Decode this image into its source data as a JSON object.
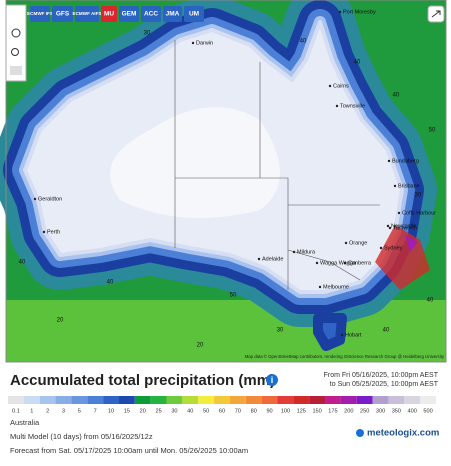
{
  "models": [
    "ECMWF IFS",
    "GFS",
    "ECMWF AIFS",
    "MU",
    "GEM",
    "ACC",
    "JMA",
    "UM"
  ],
  "cities": [
    "Port Moresby",
    "Darwin",
    "Cairns",
    "Townsville",
    "Geraldton",
    "Perth",
    "Adelaide",
    "Mildura",
    "Wagga Wagga",
    "Canberra",
    "Sydney",
    "Newcastle",
    "Tamworth",
    "Coffs Harbour",
    "Brisbane",
    "Bundaberg",
    "Orange",
    "Melbourne",
    "Hobart"
  ],
  "contours": [
    40,
    40,
    40,
    30,
    50,
    40,
    40,
    30,
    40,
    50,
    40,
    30,
    20,
    20
  ],
  "attribution": "Map data © OpenStreetMap contributors, rendering GIScience Research Group @ Heidelberg University",
  "title": "Accumulated total precipitation (mm)",
  "period_from": "From Fri 05/16/2025, 10:00pm AEST",
  "period_to": "to Sun 05/25/2025, 10:00pm AEST",
  "legend": [
    {
      "value": 0.1,
      "color": "#e4e4e4"
    },
    {
      "value": 1,
      "color": "#c9dbf5"
    },
    {
      "value": 2,
      "color": "#a8c4ee"
    },
    {
      "value": 3,
      "color": "#88aee8"
    },
    {
      "value": 5,
      "color": "#6a96e0"
    },
    {
      "value": 7,
      "color": "#4c7fd6"
    },
    {
      "value": 10,
      "color": "#2f63c6"
    },
    {
      "value": 15,
      "color": "#1d49b0"
    },
    {
      "value": 20,
      "color": "#0d9b3a"
    },
    {
      "value": 25,
      "color": "#27b33f"
    },
    {
      "value": 30,
      "color": "#6fcb3b"
    },
    {
      "value": 40,
      "color": "#b5dd3a"
    },
    {
      "value": 50,
      "color": "#f2ee3a"
    },
    {
      "value": 60,
      "color": "#f5c83a"
    },
    {
      "value": 70,
      "color": "#f5a63a"
    },
    {
      "value": 80,
      "color": "#f28a3a"
    },
    {
      "value": 90,
      "color": "#ef6a3a"
    },
    {
      "value": 100,
      "color": "#e63a3a"
    },
    {
      "value": 125,
      "color": "#d22a2a"
    },
    {
      "value": 150,
      "color": "#b81d3a"
    },
    {
      "value": 175,
      "color": "#c21d8c"
    },
    {
      "value": 200,
      "color": "#a21db0"
    },
    {
      "value": 250,
      "color": "#7a1dc8"
    },
    {
      "value": 300,
      "color": "#b0a0d0"
    },
    {
      "value": 350,
      "color": "#c8c0d8"
    },
    {
      "value": 400,
      "color": "#d8d4e0"
    },
    {
      "value": 500,
      "color": "#ececec"
    }
  ],
  "region": "Australia",
  "model_run": "Multi Model (10 days) from 05/16/2025/12z",
  "forecast": "Forecast from Sat. 05/17/2025 10:00am until Mon. 05/26/2025 10:00am",
  "brand": "meteologix.com"
}
